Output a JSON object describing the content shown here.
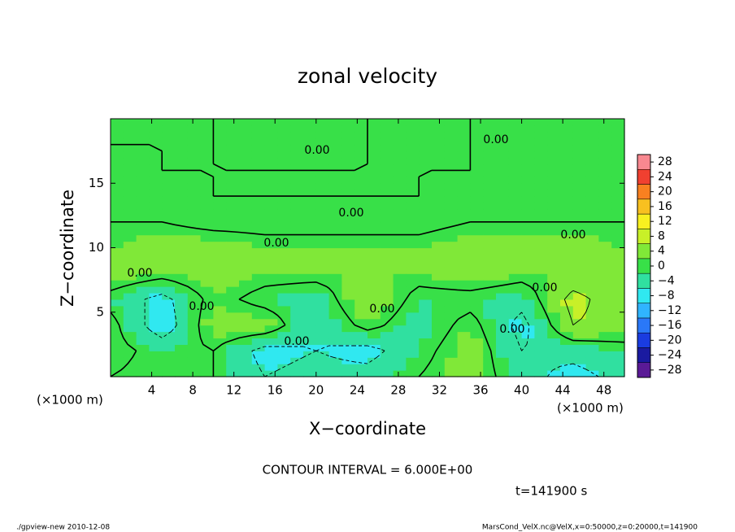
{
  "chart_data": {
    "type": "contour",
    "title": "zonal velocity",
    "xlabel": "X−coordinate",
    "ylabel": "Z−coordinate",
    "x_unit_left": "(×1000 m)",
    "x_unit_right": "(×1000 m)",
    "xlim": [
      0,
      50
    ],
    "xticks": [
      4,
      8,
      12,
      16,
      20,
      24,
      28,
      32,
      36,
      40,
      44,
      48
    ],
    "ylim": [
      0,
      20
    ],
    "yticks": [
      5,
      10,
      15
    ],
    "field": {
      "x": [
        0,
        5,
        10,
        15,
        20,
        25,
        30,
        35,
        40,
        45,
        50
      ],
      "z": [
        0,
        2,
        4,
        6,
        8,
        10,
        12,
        14,
        16,
        18,
        20
      ],
      "values": [
        [
          0,
          -2,
          0,
          -6,
          -4,
          -4,
          0,
          4,
          -4,
          -8,
          -4
        ],
        [
          2,
          -2,
          0,
          -8,
          -6,
          -8,
          -2,
          4,
          -6,
          -4,
          -2
        ],
        [
          2,
          -10,
          4,
          4,
          -6,
          2,
          -4,
          2,
          -8,
          6,
          4
        ],
        [
          -2,
          -8,
          2,
          -2,
          -4,
          6,
          -2,
          -2,
          -4,
          8,
          2
        ],
        [
          4,
          2,
          4,
          2,
          2,
          2,
          2,
          4,
          2,
          2,
          2
        ],
        [
          2,
          4,
          4,
          2,
          2,
          2,
          2,
          4,
          4,
          4,
          2
        ],
        [
          0,
          0,
          -2,
          -2,
          -2,
          -2,
          -2,
          0,
          0,
          0,
          0
        ],
        [
          -2,
          -2,
          0,
          0,
          0,
          0,
          0,
          -2,
          -2,
          -2,
          -2
        ],
        [
          -2,
          0,
          0,
          0,
          0,
          0,
          0,
          0,
          -2,
          -2,
          -2
        ],
        [
          0,
          0,
          0,
          -2,
          -2,
          0,
          0,
          0,
          -2,
          -2,
          -2
        ],
        [
          0,
          0,
          0,
          -2,
          -2,
          0,
          0,
          0,
          -2,
          -2,
          -2
        ]
      ]
    },
    "contour_levels": [
      -6,
      0,
      6
    ],
    "contour_labels": [
      "0.00",
      "0.00",
      "0.00",
      "0.00",
      "0.00",
      "0.00",
      "0.00",
      "0.00",
      "0.00",
      "0.00",
      "0.00"
    ],
    "colorbar": {
      "lim": [
        -30,
        30
      ],
      "ticks": [
        -28,
        -24,
        -20,
        -16,
        -12,
        -8,
        -4,
        0,
        4,
        8,
        12,
        16,
        20,
        24,
        28
      ],
      "tick_labels": [
        "−28",
        "−24",
        "−20",
        "−16",
        "−12",
        "−8",
        "−4",
        "0",
        "4",
        "8",
        "12",
        "16",
        "20",
        "24",
        "28"
      ],
      "boundaries": [
        -30,
        -26,
        -22,
        -18,
        -14,
        -10,
        -6,
        -2,
        2,
        6,
        10,
        14,
        18,
        22,
        26,
        30
      ],
      "colors": [
        "#5a1a96",
        "#1a1aa0",
        "#1a3ce0",
        "#2a78f8",
        "#30b4ff",
        "#30e8f0",
        "#30e0a0",
        "#38e048",
        "#80e838",
        "#c8f028",
        "#f8f020",
        "#f8c020",
        "#f88020",
        "#f04030",
        "#f88890"
      ]
    },
    "contour_interval": "CONTOUR INTERVAL = 6.000E+00",
    "time_label": "t=141900 s",
    "footer_left": "./gpview-new  2010-12-08",
    "footer_right": "MarsCond_VelX.nc@VelX,x=0:50000,z=0:20000,t=141900"
  }
}
